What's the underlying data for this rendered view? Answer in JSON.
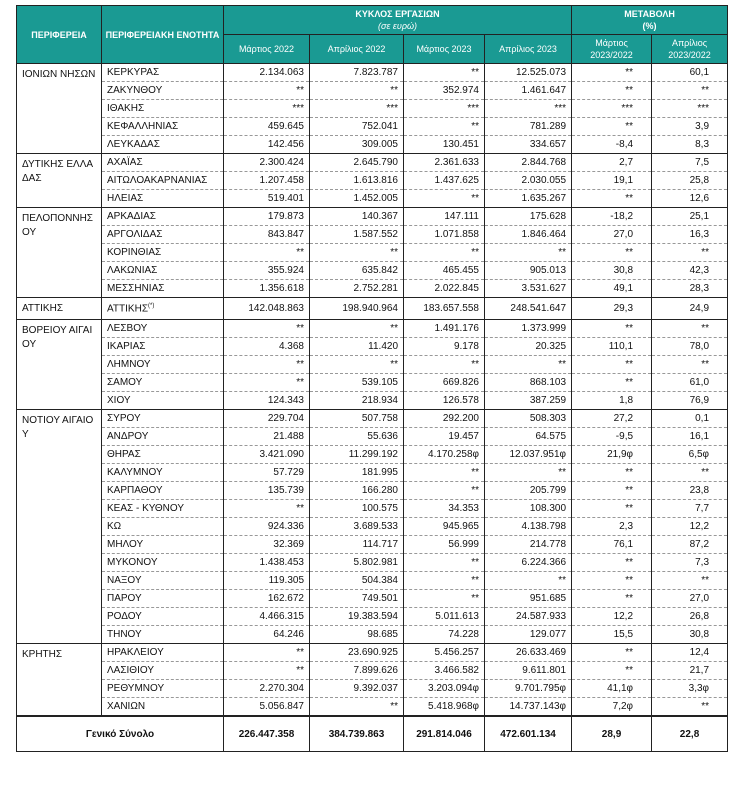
{
  "header": {
    "region": "ΠΕΡΙΦΕΡΕΙΑ",
    "unit": "ΠΕΡΙΦΕΡΕΙΑΚΗ ΕΝΟΤΗΤΑ",
    "turnover": "ΚΥΚΛΟΣ ΕΡΓΑΣΙΩΝ",
    "turnover_sub": "(σε ευρώ)",
    "change": "ΜΕΤΑΒΟΛΗ",
    "change_sub": "(%)",
    "cols": [
      "Μάρτιος 2022",
      "Απρίλιος 2022",
      "Μάρτιος 2023",
      "Απρίλιος 2023",
      "Μάρτιος 2023/2022",
      "Απρίλιος 2023/2022"
    ]
  },
  "groups": [
    {
      "region": "ΙΟΝΙΩΝ ΝΗΣΩΝ",
      "rows": [
        [
          "ΚΕΡΚΥΡΑΣ",
          "2.134.063",
          "7.823.787",
          "**",
          "12.525.073",
          "**",
          "60,1"
        ],
        [
          "ΖΑΚΥΝΘΟΥ",
          "**",
          "**",
          "352.974",
          "1.461.647",
          "**",
          "**"
        ],
        [
          "ΙΘΑΚΗΣ",
          "***",
          "***",
          "***",
          "***",
          "***",
          "***"
        ],
        [
          "ΚΕΦΑΛΛΗΝΙΑΣ",
          "459.645",
          "752.041",
          "**",
          "781.289",
          "**",
          "3,9"
        ],
        [
          "ΛΕΥΚΑΔΑΣ",
          "142.456",
          "309.005",
          "130.451",
          "334.657",
          "-8,4",
          "8,3"
        ]
      ]
    },
    {
      "region": "ΔΥΤΙΚΗΣ ΕΛΛΑΔΑΣ",
      "rows": [
        [
          "ΑΧΑΪΑΣ",
          "2.300.424",
          "2.645.790",
          "2.361.633",
          "2.844.768",
          "2,7",
          "7,5"
        ],
        [
          "ΑΙΤΩΛΟΑΚΑΡΝΑΝΙΑΣ",
          "1.207.458",
          "1.613.816",
          "1.437.625",
          "2.030.055",
          "19,1",
          "25,8"
        ],
        [
          "ΗΛΕΙΑΣ",
          "519.401",
          "1.452.005",
          "**",
          "1.635.267",
          "**",
          "12,6"
        ]
      ]
    },
    {
      "region": "ΠΕΛΟΠΟΝΝΗΣΟΥ",
      "rows": [
        [
          "ΑΡΚΑΔΙΑΣ",
          "179.873",
          "140.367",
          "147.111",
          "175.628",
          "-18,2",
          "25,1"
        ],
        [
          "ΑΡΓΟΛΙΔΑΣ",
          "843.847",
          "1.587.552",
          "1.071.858",
          "1.846.464",
          "27,0",
          "16,3"
        ],
        [
          "ΚΟΡΙΝΘΙΑΣ",
          "**",
          "**",
          "**",
          "**",
          "**",
          "**"
        ],
        [
          "ΛΑΚΩΝΙΑΣ",
          "355.924",
          "635.842",
          "465.455",
          "905.013",
          "30,8",
          "42,3"
        ],
        [
          "ΜΕΣΣΗΝΙΑΣ",
          "1.356.618",
          "2.752.281",
          "2.022.845",
          "3.531.627",
          "49,1",
          "28,3"
        ]
      ]
    },
    {
      "region": "ΑΤΤΙΚΗΣ",
      "rows": [
        [
          "ΑΤΤΙΚΗΣ(*)",
          "142.048.863",
          "198.940.964",
          "183.657.558",
          "248.541.647",
          "29,3",
          "24,9"
        ]
      ]
    },
    {
      "region": "ΒΟΡΕΙΟΥ ΑΙΓΑΙΟΥ",
      "rows": [
        [
          "ΛΕΣΒΟΥ",
          "**",
          "**",
          "1.491.176",
          "1.373.999",
          "**",
          "**"
        ],
        [
          "ΙΚΑΡΙΑΣ",
          "4.368",
          "11.420",
          "9.178",
          "20.325",
          "110,1",
          "78,0"
        ],
        [
          "ΛΗΜΝΟΥ",
          "**",
          "**",
          "**",
          "**",
          "**",
          "**"
        ],
        [
          "ΣΑΜΟΥ",
          "**",
          "539.105",
          "669.826",
          "868.103",
          "**",
          "61,0"
        ],
        [
          "ΧΙΟΥ",
          "124.343",
          "218.934",
          "126.578",
          "387.259",
          "1,8",
          "76,9"
        ]
      ]
    },
    {
      "region": "ΝΟΤΙΟΥ ΑΙΓΑΙΟΥ",
      "rows": [
        [
          "ΣΥΡΟΥ",
          "229.704",
          "507.758",
          "292.200",
          "508.303",
          "27,2",
          "0,1"
        ],
        [
          "ΑΝΔΡΟΥ",
          "21.488",
          "55.636",
          "19.457",
          "64.575",
          "-9,5",
          "16,1"
        ],
        [
          "ΘΗΡΑΣ",
          "3.421.090",
          "11.299.192",
          "4.170.258φ",
          "12.037.951φ",
          "21,9φ",
          "6,5φ"
        ],
        [
          "ΚΑΛΥΜΝΟΥ",
          "57.729",
          "181.995",
          "**",
          "**",
          "**",
          "**"
        ],
        [
          "ΚΑΡΠΑΘΟΥ",
          "135.739",
          "166.280",
          "**",
          "205.799",
          "**",
          "23,8"
        ],
        [
          "ΚΕΑΣ - ΚΥΘΝΟΥ",
          "**",
          "100.575",
          "34.353",
          "108.300",
          "**",
          "7,7"
        ],
        [
          "ΚΩ",
          "924.336",
          "3.689.533",
          "945.965",
          "4.138.798",
          "2,3",
          "12,2"
        ],
        [
          "ΜΗΛΟΥ",
          "32.369",
          "114.717",
          "56.999",
          "214.778",
          "76,1",
          "87,2"
        ],
        [
          "ΜΥΚΟΝΟΥ",
          "1.438.453",
          "5.802.981",
          "**",
          "6.224.366",
          "**",
          "7,3"
        ],
        [
          "ΝΑΞΟΥ",
          "119.305",
          "504.384",
          "**",
          "**",
          "**",
          "**"
        ],
        [
          "ΠΑΡΟΥ",
          "162.672",
          "749.501",
          "**",
          "951.685",
          "**",
          "27,0"
        ],
        [
          "ΡΟΔΟΥ",
          "4.466.315",
          "19.383.594",
          "5.011.613",
          "24.587.933",
          "12,2",
          "26,8"
        ],
        [
          "ΤΗΝΟΥ",
          "64.246",
          "98.685",
          "74.228",
          "129.077",
          "15,5",
          "30,8"
        ]
      ]
    },
    {
      "region": "ΚΡΗΤΗΣ",
      "rows": [
        [
          "ΗΡΑΚΛΕΙΟΥ",
          "**",
          "23.690.925",
          "5.456.257",
          "26.633.469",
          "**",
          "12,4"
        ],
        [
          "ΛΑΣΙΘΙΟΥ",
          "**",
          "7.899.626",
          "3.466.582",
          "9.611.801",
          "**",
          "21,7"
        ],
        [
          "ΡΕΘΥΜΝΟΥ",
          "2.270.304",
          "9.392.037",
          "3.203.094φ",
          "9.701.795φ",
          "41,1φ",
          "3,3φ"
        ],
        [
          "ΧΑΝΙΩΝ",
          "5.056.847",
          "**",
          "5.418.968φ",
          "14.737.143φ",
          "7,2φ",
          "**"
        ]
      ]
    }
  ],
  "total": {
    "label": "Γενικό Σύνολο",
    "values": [
      "226.447.358",
      "384.739.863",
      "291.814.046",
      "472.601.134",
      "28,9",
      "22,8"
    ]
  },
  "colors": {
    "header_bg": "#1a9a93",
    "header_text": "#ffffff"
  }
}
